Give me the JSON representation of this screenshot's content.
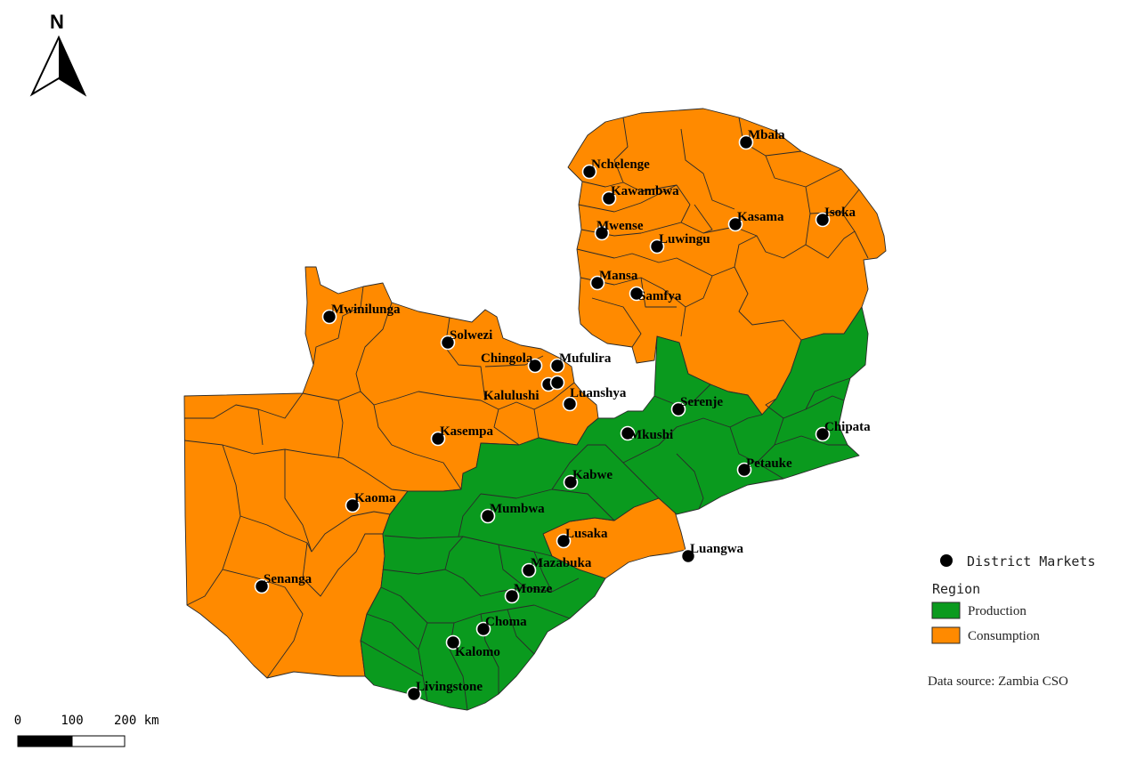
{
  "colors": {
    "production": "#0a9a1e",
    "consumption": "#ff8a00",
    "marker": "#000000"
  },
  "north_arrow": {
    "label": "N"
  },
  "scale_bar": {
    "ticks": [
      "0",
      "100",
      "200 km"
    ]
  },
  "legend": {
    "markers_label": "District Markets",
    "region_title": "Region",
    "production_label": "Production",
    "consumption_label": "Consumption"
  },
  "source_note": "Data source: Zambia CSO",
  "markets": [
    {
      "name": "Mbala"
    },
    {
      "name": "Nchelenge"
    },
    {
      "name": "Kawambwa"
    },
    {
      "name": "Kasama"
    },
    {
      "name": "Isoka"
    },
    {
      "name": "Mwense"
    },
    {
      "name": "Luwingu"
    },
    {
      "name": "Mansa"
    },
    {
      "name": "Samfya"
    },
    {
      "name": "Mwinilunga"
    },
    {
      "name": "Solwezi"
    },
    {
      "name": "Chingola"
    },
    {
      "name": "Mufulira"
    },
    {
      "name": "Kalulushi"
    },
    {
      "name": "Luanshya"
    },
    {
      "name": "Serenje"
    },
    {
      "name": "Chipata"
    },
    {
      "name": "Mkushi"
    },
    {
      "name": "Kasempa"
    },
    {
      "name": "Petauke"
    },
    {
      "name": "Kabwe"
    },
    {
      "name": "Kaoma"
    },
    {
      "name": "Mumbwa"
    },
    {
      "name": "Lusaka"
    },
    {
      "name": "Luangwa"
    },
    {
      "name": "Mazabuka"
    },
    {
      "name": "Senanga"
    },
    {
      "name": "Monze"
    },
    {
      "name": "Choma"
    },
    {
      "name": "Kalomo"
    },
    {
      "name": "Livingstone"
    }
  ]
}
